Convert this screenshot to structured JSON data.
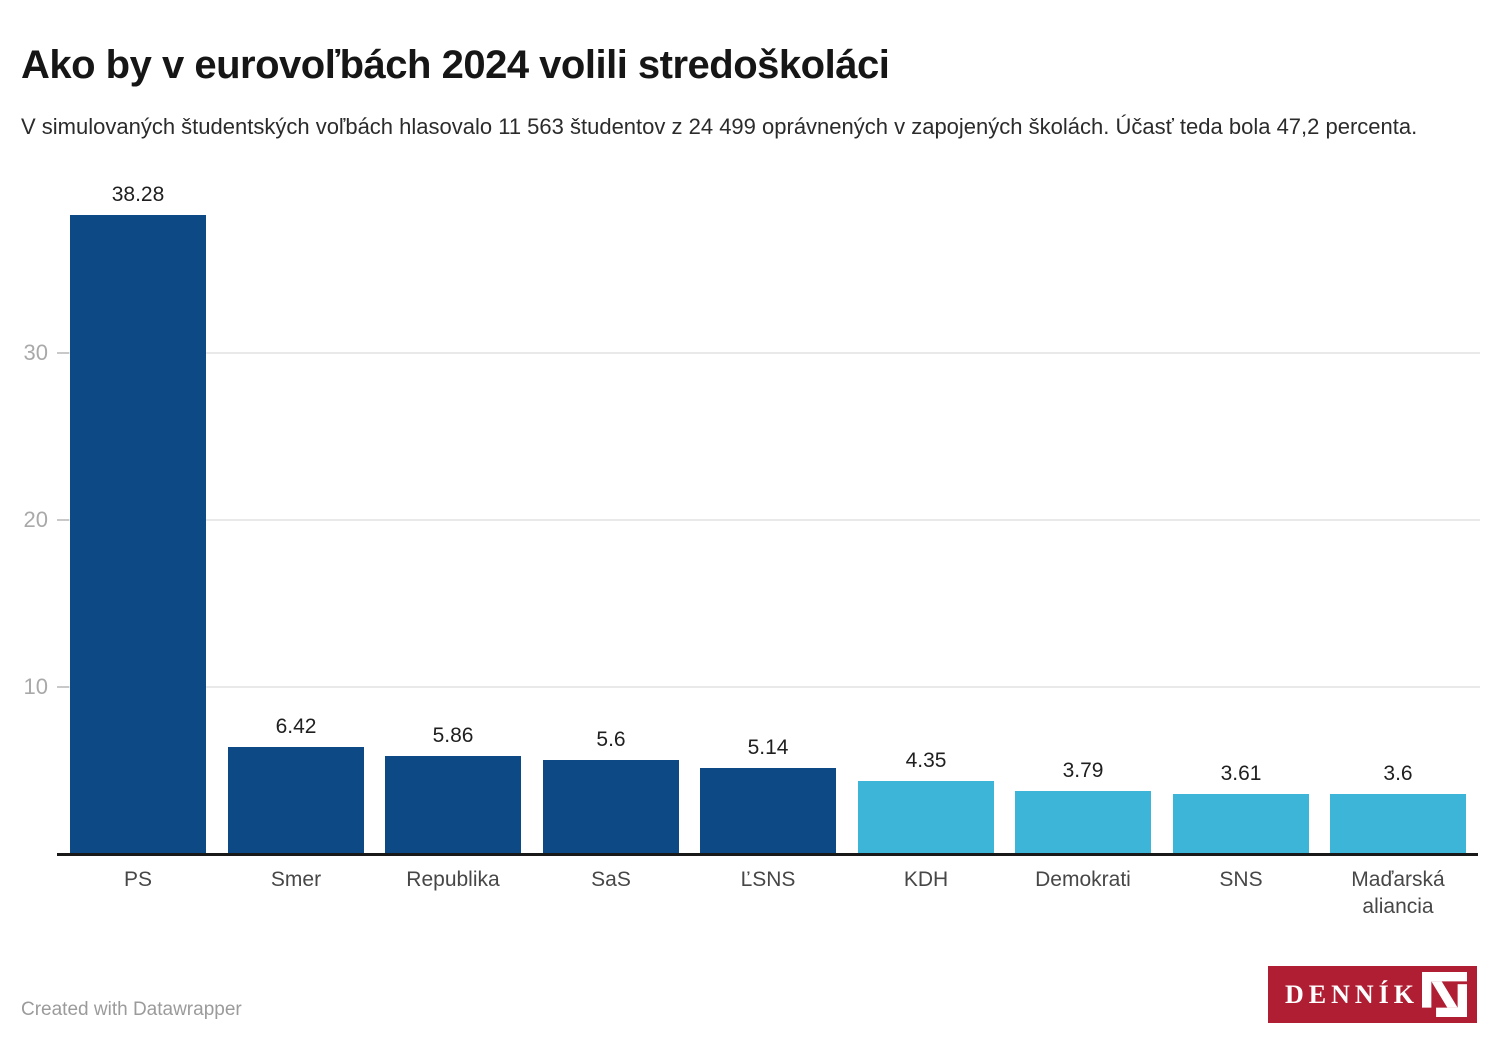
{
  "header": {
    "title": "Ako by v eurovoľbách 2024 volili stredoškoláci",
    "subtitle": "V simulovaných študentských voľbách hlasovalo 11 563 študentov z 24 499 oprávnených v zapojených školách. Účasť teda bola 47,2 percenta."
  },
  "chart_data": {
    "type": "bar",
    "title": "Ako by v eurovoľbách 2024 volili stredoškoláci",
    "categories": [
      "PS",
      "Smer",
      "Republika",
      "SaS",
      "ĽSNS",
      "KDH",
      "Demokrati",
      "SNS",
      "Maďarská aliancia"
    ],
    "values": [
      38.28,
      6.42,
      5.86,
      5.6,
      5.14,
      4.35,
      3.79,
      3.61,
      3.6
    ],
    "value_labels": [
      "38.28",
      "6.42",
      "5.86",
      "5.6",
      "5.14",
      "4.35",
      "3.79",
      "3.61",
      "3.6"
    ],
    "bar_colors": [
      "#0d4984",
      "#0d4984",
      "#0d4984",
      "#0d4984",
      "#0d4984",
      "#3cb5d8",
      "#3cb5d8",
      "#3cb5d8",
      "#3cb5d8"
    ],
    "colors": {
      "dark_blue": "#0d4984",
      "light_blue": "#3cb5d8"
    },
    "xlabel": "",
    "ylabel": "",
    "y_ticks": [
      10,
      20,
      30
    ],
    "ylim": [
      0,
      41
    ],
    "grid": "horizontal",
    "legend": "none",
    "units": "percent"
  },
  "footer": {
    "credit": "Created with Datawrapper",
    "logo": {
      "text": "DENNÍK",
      "mark": "dennik-n-square",
      "background": "#b01e33",
      "text_color": "#ffffff"
    }
  }
}
